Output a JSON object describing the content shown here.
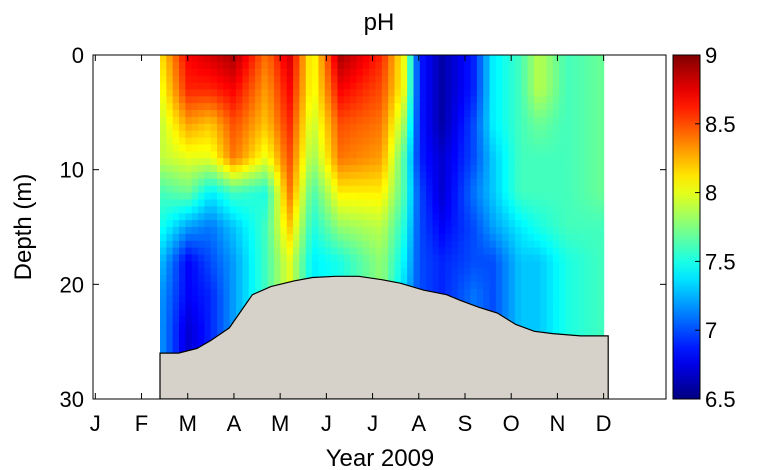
{
  "chart_data": {
    "type": "heatmap",
    "title": "pH",
    "xlabel": "Year 2009",
    "ylabel": "Depth (m)",
    "x_ticks": [
      "J",
      "F",
      "M",
      "A",
      "M",
      "J",
      "J",
      "A",
      "S",
      "O",
      "N",
      "D"
    ],
    "x_tick_months": [
      1,
      2,
      3,
      4,
      5,
      6,
      7,
      8,
      9,
      10,
      11,
      12
    ],
    "xlim": [
      0.95,
      13.35
    ],
    "ylim": [
      0,
      30
    ],
    "y_ticks": [
      0,
      10,
      20,
      30
    ],
    "y_reversed": true,
    "colorbar": {
      "range": [
        6.5,
        9
      ],
      "ticks": [
        "6.5",
        "7",
        "7.5",
        "8",
        "8.5",
        "9"
      ],
      "colormap": "jet"
    },
    "sampling_months": [
      2.4,
      3.0,
      3.5,
      4.0,
      4.7,
      5.2,
      5.7,
      6.3,
      7.2,
      7.7,
      8.0,
      8.5,
      9.2,
      9.6,
      10.2,
      10.6,
      11.2,
      12.0
    ],
    "sampling_depths": [
      0,
      3,
      6,
      9,
      12,
      15,
      18,
      21,
      24,
      27
    ],
    "ph_profiles": [
      [
        8.1,
        8.0,
        7.9,
        7.9,
        7.6,
        7.5,
        7.3,
        7.2,
        7.2,
        7.2
      ],
      [
        8.7,
        8.6,
        8.3,
        8.0,
        7.7,
        7.2,
        6.8,
        6.8,
        6.7,
        6.7
      ],
      [
        8.8,
        8.6,
        8.2,
        8.0,
        7.4,
        7.1,
        7.0,
        6.9,
        6.9,
        6.9
      ],
      [
        8.9,
        8.7,
        8.5,
        8.4,
        7.6,
        7.3,
        7.2,
        7.2,
        7.2,
        7.2
      ],
      [
        8.4,
        8.3,
        8.2,
        8.0,
        7.5,
        7.6,
        7.6,
        7.6,
        7.6,
        7.6
      ],
      [
        8.8,
        8.7,
        8.6,
        8.5,
        8.4,
        8.2,
        8.0,
        8.0,
        8.0,
        8.0
      ],
      [
        8.0,
        8.0,
        7.9,
        7.8,
        7.6,
        7.5,
        7.4,
        7.4,
        7.4,
        7.4
      ],
      [
        8.9,
        8.7,
        8.5,
        8.4,
        8.1,
        7.8,
        7.5,
        7.5,
        7.5,
        7.5
      ],
      [
        8.6,
        8.5,
        8.4,
        8.3,
        8.1,
        7.9,
        7.8,
        7.8,
        7.8,
        7.8
      ],
      [
        8.0,
        8.0,
        7.8,
        7.6,
        7.6,
        7.5,
        7.4,
        7.3,
        7.3,
        7.3
      ],
      [
        6.9,
        6.9,
        6.9,
        6.9,
        7.0,
        7.0,
        7.0,
        7.0,
        7.0,
        7.0
      ],
      [
        6.6,
        6.6,
        6.6,
        6.7,
        6.7,
        6.8,
        6.9,
        6.9,
        6.9,
        6.9
      ],
      [
        6.9,
        6.9,
        7.0,
        7.0,
        7.1,
        7.0,
        7.0,
        7.1,
        7.1,
        7.1
      ],
      [
        7.4,
        7.4,
        7.4,
        7.3,
        7.3,
        7.2,
        7.0,
        7.0,
        7.0,
        7.0
      ],
      [
        7.6,
        7.6,
        7.6,
        7.6,
        7.6,
        7.4,
        7.3,
        7.3,
        7.3,
        7.3
      ],
      [
        7.9,
        7.9,
        7.7,
        7.6,
        7.6,
        7.5,
        7.3,
        7.3,
        7.3,
        7.3
      ],
      [
        7.6,
        7.6,
        7.6,
        7.6,
        7.6,
        7.6,
        7.5,
        7.5,
        7.5,
        7.5
      ],
      [
        7.7,
        7.7,
        7.7,
        7.7,
        7.7,
        7.6,
        7.6,
        7.6,
        7.6,
        7.6
      ]
    ],
    "bottom_depth": {
      "months": [
        2.4,
        2.8,
        3.2,
        3.5,
        3.9,
        4.4,
        4.8,
        5.3,
        5.7,
        6.2,
        6.7,
        7.2,
        7.6,
        8.1,
        8.6,
        8.9,
        9.3,
        9.7,
        10.1,
        10.5,
        10.9,
        11.5,
        12.1
      ],
      "depth_m": [
        26.0,
        26.0,
        25.6,
        24.9,
        23.8,
        20.9,
        20.2,
        19.7,
        19.4,
        19.3,
        19.3,
        19.6,
        19.9,
        20.5,
        20.9,
        21.4,
        22.0,
        22.5,
        23.5,
        24.1,
        24.3,
        24.5,
        24.5
      ]
    },
    "colors": {
      "bottom_fill": "#d6d2ca",
      "outline": "#000000"
    }
  }
}
